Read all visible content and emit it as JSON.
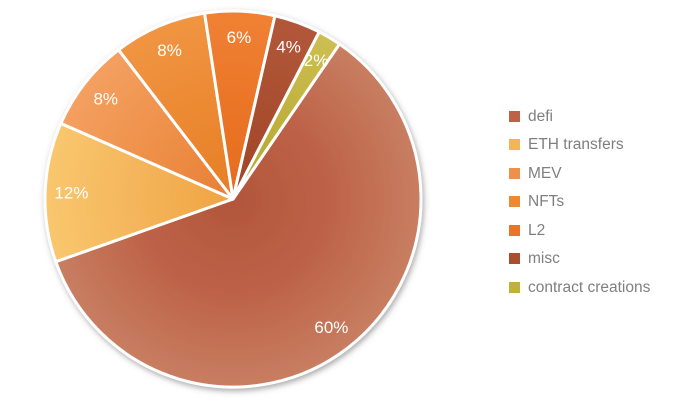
{
  "chart_data": {
    "type": "pie",
    "title": "",
    "units": "percent",
    "direction": "clockwise",
    "start_angle_deg": 34.5,
    "legend_position": "right",
    "background_color": "#FFFFFF",
    "slice_border_color": "#FFFFFF",
    "slice_label_color": "#FFFFFF",
    "legend_text_color": "#7F7F7F",
    "items": [
      {
        "label": "defi",
        "value": 60,
        "pct_label": "60%",
        "color": "#BD6247",
        "color_inner": "#B2563B",
        "color_outer": "#C87E62"
      },
      {
        "label": "ETH transfers",
        "value": 12,
        "pct_label": "12%",
        "color": "#F4B45A",
        "color_inner": "#EFA441",
        "color_outer": "#F9C76E"
      },
      {
        "label": "MEV",
        "value": 8,
        "pct_label": "8%",
        "color": "#EE9049",
        "color_inner": "#E87F35",
        "color_outer": "#F4A061"
      },
      {
        "label": "NFTs",
        "value": 8,
        "pct_label": "8%",
        "color": "#EC8932",
        "color_inner": "#E67E27",
        "color_outer": "#F09543"
      },
      {
        "label": "L2",
        "value": 6,
        "pct_label": "6%",
        "color": "#EB7527",
        "color_inner": "#E56B1F",
        "color_outer": "#F08134"
      },
      {
        "label": "misc",
        "value": 4,
        "pct_label": "4%",
        "color": "#A94E2F",
        "color_inner": "#9E4627",
        "color_outer": "#B2573A"
      },
      {
        "label": "contract creations",
        "value": 2,
        "pct_label": "2%",
        "color": "#C0B13D",
        "color_inner": "#B3A52E",
        "color_outer": "#CCBE52"
      }
    ]
  }
}
